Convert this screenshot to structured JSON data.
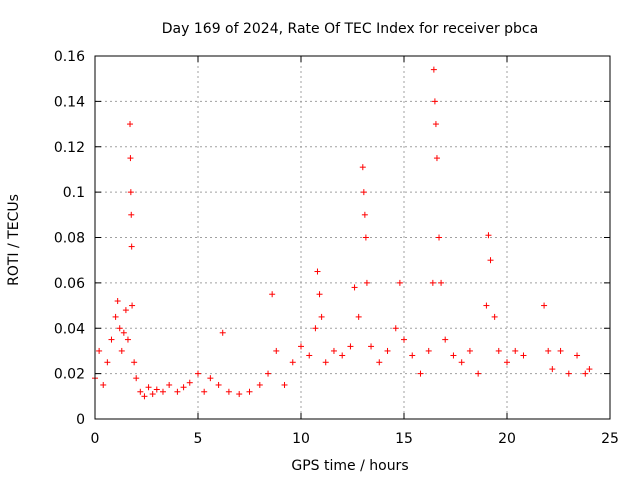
{
  "chart_data": {
    "type": "scatter",
    "title": "Day 169 of 2024, Rate Of TEC Index for receiver pbca",
    "xlabel": "GPS time / hours",
    "ylabel": "ROTI / TECUs",
    "xlim": [
      0,
      25
    ],
    "ylim": [
      0,
      0.16
    ],
    "xticks": [
      0,
      5,
      10,
      15,
      20,
      25
    ],
    "xtick_labels": [
      "0",
      "5",
      "10",
      "15",
      "20",
      "25"
    ],
    "yticks": [
      0,
      0.02,
      0.04,
      0.06,
      0.08,
      0.1,
      0.12,
      0.14,
      0.16
    ],
    "ytick_labels": [
      "0",
      "0.02",
      "0.04",
      "0.06",
      "0.08",
      "0.1",
      "0.12",
      "0.14",
      "0.16"
    ],
    "grid": true,
    "marker": "+",
    "series_color": "#ff0000",
    "series": [
      {
        "name": "ROTI",
        "x": [
          0.0,
          0.2,
          0.4,
          0.6,
          0.8,
          1.0,
          1.1,
          1.2,
          1.3,
          1.4,
          1.5,
          1.6,
          1.7,
          1.72,
          1.74,
          1.76,
          1.78,
          1.8,
          1.9,
          2.0,
          2.2,
          2.4,
          2.6,
          2.8,
          3.0,
          3.3,
          3.6,
          4.0,
          4.3,
          4.6,
          5.0,
          5.3,
          5.6,
          6.0,
          6.2,
          6.5,
          7.0,
          7.5,
          8.0,
          8.4,
          8.6,
          8.8,
          9.2,
          9.6,
          10.0,
          10.4,
          10.7,
          10.8,
          10.9,
          11.0,
          11.2,
          11.6,
          12.0,
          12.4,
          12.6,
          12.8,
          13.0,
          13.05,
          13.1,
          13.15,
          13.2,
          13.4,
          13.8,
          14.2,
          14.6,
          14.8,
          15.0,
          15.4,
          15.8,
          16.2,
          16.4,
          16.45,
          16.5,
          16.55,
          16.6,
          16.7,
          16.8,
          17.0,
          17.4,
          17.8,
          18.2,
          18.6,
          19.0,
          19.1,
          19.2,
          19.4,
          19.6,
          20.0,
          20.4,
          20.8,
          21.8,
          22.0,
          22.2,
          22.6,
          23.0,
          23.4,
          23.8,
          24.0
        ],
        "y": [
          0.018,
          0.03,
          0.015,
          0.025,
          0.035,
          0.045,
          0.052,
          0.04,
          0.03,
          0.038,
          0.048,
          0.035,
          0.13,
          0.115,
          0.1,
          0.09,
          0.076,
          0.05,
          0.025,
          0.018,
          0.012,
          0.01,
          0.014,
          0.011,
          0.013,
          0.012,
          0.015,
          0.012,
          0.014,
          0.016,
          0.02,
          0.012,
          0.018,
          0.015,
          0.038,
          0.012,
          0.011,
          0.012,
          0.015,
          0.02,
          0.055,
          0.03,
          0.015,
          0.025,
          0.032,
          0.028,
          0.04,
          0.065,
          0.055,
          0.045,
          0.025,
          0.03,
          0.028,
          0.032,
          0.058,
          0.045,
          0.111,
          0.1,
          0.09,
          0.08,
          0.06,
          0.032,
          0.025,
          0.03,
          0.04,
          0.06,
          0.035,
          0.028,
          0.02,
          0.03,
          0.06,
          0.154,
          0.14,
          0.13,
          0.115,
          0.08,
          0.06,
          0.035,
          0.028,
          0.025,
          0.03,
          0.02,
          0.05,
          0.081,
          0.07,
          0.045,
          0.03,
          0.025,
          0.03,
          0.028,
          0.05,
          0.03,
          0.022,
          0.03,
          0.02,
          0.028,
          0.02,
          0.022
        ]
      }
    ]
  }
}
